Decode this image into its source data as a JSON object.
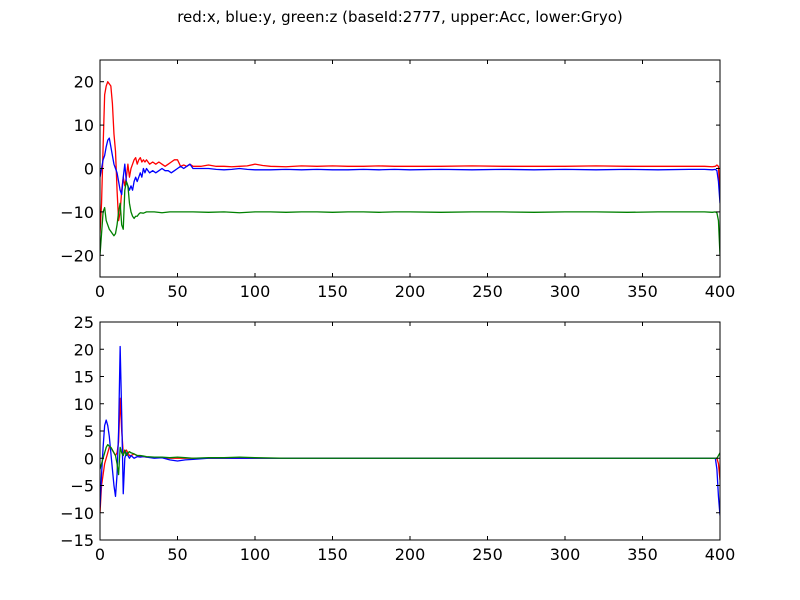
{
  "chart_data": {
    "title": "red:x, blue:y, green:z (baseId:2777, upper:Acc, lower:Gryo)",
    "panels": [
      {
        "type": "line",
        "xlim": [
          0,
          400
        ],
        "ylim": [
          -25,
          25
        ],
        "xticks": [
          0,
          50,
          100,
          150,
          200,
          250,
          300,
          350,
          400
        ],
        "yticks": [
          -20,
          -10,
          0,
          10,
          20
        ],
        "grid": false,
        "series": [
          {
            "color": "#ff0000",
            "x": [
              0,
              1,
              2,
              3,
              4,
              5,
              6,
              7,
              8,
              9,
              10,
              11,
              12,
              13,
              14,
              15,
              16,
              17,
              18,
              19,
              20,
              21,
              22,
              23,
              24,
              25,
              26,
              27,
              28,
              29,
              30,
              32,
              34,
              36,
              38,
              40,
              42,
              44,
              46,
              48,
              50,
              52,
              54,
              56,
              58,
              60,
              65,
              70,
              75,
              80,
              85,
              90,
              95,
              100,
              105,
              110,
              120,
              130,
              140,
              150,
              160,
              170,
              180,
              190,
              200,
              220,
              240,
              260,
              280,
              300,
              320,
              340,
              360,
              380,
              390,
              395,
              397,
              398,
              399,
              400
            ],
            "y": [
              -15,
              -8,
              5,
              17,
              19,
              20,
              19.5,
              19,
              15,
              8,
              4,
              -5,
              -12,
              -10,
              -5,
              -2,
              -4,
              -2,
              1,
              -2,
              0,
              1,
              2,
              2.5,
              1,
              2,
              2.5,
              1.5,
              2,
              1.5,
              2,
              1,
              1.5,
              1,
              1.5,
              1,
              0.5,
              1,
              1.5,
              2,
              2,
              0.5,
              0.8,
              0.5,
              1,
              0.5,
              0.5,
              0.8,
              0.5,
              0.5,
              0.4,
              0.5,
              0.6,
              1,
              0.7,
              0.5,
              0.4,
              0.6,
              0.5,
              0.6,
              0.5,
              0.5,
              0.6,
              0.5,
              0.5,
              0.5,
              0.6,
              0.5,
              0.5,
              0.5,
              0.6,
              0.5,
              0.5,
              0.5,
              0.5,
              0.4,
              0.5,
              0.8,
              0.5,
              -7
            ]
          },
          {
            "color": "#0000ff",
            "x": [
              0,
              1,
              2,
              3,
              4,
              5,
              6,
              7,
              8,
              9,
              10,
              11,
              12,
              13,
              14,
              15,
              16,
              17,
              18,
              19,
              20,
              21,
              22,
              23,
              24,
              25,
              26,
              27,
              28,
              29,
              30,
              32,
              34,
              36,
              38,
              40,
              42,
              44,
              46,
              48,
              50,
              52,
              54,
              56,
              58,
              60,
              65,
              70,
              75,
              80,
              85,
              90,
              95,
              100,
              110,
              120,
              130,
              140,
              150,
              160,
              170,
              180,
              190,
              200,
              220,
              240,
              260,
              280,
              300,
              320,
              340,
              360,
              380,
              390,
              395,
              397,
              398,
              399,
              400
            ],
            "y": [
              -2,
              0,
              2,
              3,
              5,
              6.5,
              7,
              5,
              3,
              1,
              0,
              -1,
              -3,
              -5,
              -6,
              -2,
              1,
              -3,
              -4,
              -5,
              -4,
              -5,
              -3,
              -2,
              -3,
              -2,
              -1,
              -2,
              0,
              -1,
              0,
              -1,
              -0.5,
              -1,
              -0.5,
              0,
              -0.5,
              -0.5,
              -1,
              -0.5,
              0,
              0.5,
              0,
              0.5,
              1,
              0,
              0,
              0,
              -0.2,
              -0.3,
              -0.2,
              0,
              -0.2,
              -0.3,
              -0.3,
              -0.2,
              -0.3,
              -0.2,
              -0.3,
              -0.3,
              -0.2,
              -0.3,
              -0.2,
              -0.3,
              -0.2,
              -0.3,
              -0.2,
              -0.3,
              -0.2,
              -0.3,
              -0.2,
              -0.3,
              -0.2,
              -0.2,
              -0.3,
              -0.2,
              -0.5,
              -3,
              -8
            ]
          },
          {
            "color": "#008000",
            "x": [
              0,
              1,
              2,
              3,
              4,
              5,
              6,
              7,
              8,
              9,
              10,
              11,
              12,
              13,
              14,
              15,
              16,
              17,
              18,
              19,
              20,
              21,
              22,
              23,
              24,
              25,
              26,
              28,
              30,
              35,
              40,
              45,
              50,
              60,
              70,
              80,
              90,
              100,
              110,
              120,
              130,
              140,
              150,
              160,
              170,
              180,
              190,
              200,
              220,
              240,
              260,
              280,
              300,
              320,
              340,
              360,
              380,
              390,
              395,
              397,
              398,
              399,
              400
            ],
            "y": [
              -20,
              -15,
              -10,
              -9,
              -12,
              -13,
              -14,
              -14.5,
              -15,
              -15.5,
              -15,
              -13,
              -10,
              -8,
              -13,
              -14,
              -5,
              -3,
              -4,
              -8,
              -10,
              -11,
              -11.5,
              -11,
              -11,
              -10.5,
              -10.2,
              -10.3,
              -10,
              -10,
              -10.2,
              -10,
              -10,
              -10,
              -10.1,
              -10,
              -10.2,
              -10,
              -10,
              -10.1,
              -10,
              -10,
              -10.1,
              -10,
              -10,
              -10.1,
              -10,
              -10,
              -10.1,
              -10,
              -10,
              -10.1,
              -10,
              -10,
              -10.1,
              -10,
              -10,
              -10,
              -10.1,
              -10,
              -10.2,
              -12,
              -20
            ]
          }
        ]
      },
      {
        "type": "line",
        "xlim": [
          0,
          400
        ],
        "ylim": [
          -15,
          25
        ],
        "xticks": [
          0,
          50,
          100,
          150,
          200,
          250,
          300,
          350,
          400
        ],
        "yticks": [
          -15,
          -10,
          -5,
          0,
          5,
          10,
          15,
          20,
          25
        ],
        "grid": false,
        "series": [
          {
            "color": "#ff0000",
            "x": [
              0,
              1,
              2,
              3,
              4,
              5,
              6,
              7,
              8,
              9,
              10,
              11,
              12,
              13,
              14,
              15,
              16,
              17,
              18,
              19,
              20,
              22,
              24,
              26,
              28,
              30,
              35,
              40,
              45,
              50,
              55,
              60,
              70,
              80,
              90,
              100,
              120,
              150,
              200,
              250,
              300,
              350,
              390,
              395,
              397,
              398,
              399,
              400
            ],
            "y": [
              -10,
              -5,
              -3,
              -1,
              0,
              1,
              2,
              2,
              1.5,
              1,
              0.5,
              1,
              3,
              11,
              5,
              1,
              1,
              1.5,
              1,
              0.5,
              0.5,
              0.8,
              0.5,
              0.3,
              0.3,
              0.2,
              0.2,
              0.1,
              0,
              0,
              0,
              0,
              0,
              0,
              0,
              0,
              0,
              0,
              0,
              0,
              0,
              0,
              0,
              0,
              0,
              0,
              -1,
              -4
            ]
          },
          {
            "color": "#0000ff",
            "x": [
              0,
              1,
              2,
              3,
              4,
              5,
              6,
              7,
              8,
              9,
              10,
              11,
              12,
              13,
              14,
              15,
              16,
              17,
              18,
              19,
              20,
              22,
              24,
              26,
              28,
              30,
              35,
              40,
              45,
              50,
              55,
              60,
              70,
              80,
              90,
              100,
              120,
              150,
              200,
              250,
              300,
              350,
              390,
              395,
              397,
              398,
              399,
              400
            ],
            "y": [
              -9,
              -3,
              2,
              6,
              7,
              6,
              4,
              1,
              -2,
              -5,
              -7,
              -3,
              5,
              20.5,
              8,
              -6.5,
              0,
              1,
              0.5,
              0,
              0.5,
              0,
              0.3,
              0.2,
              0.3,
              0.2,
              0,
              0.1,
              -0.3,
              -0.5,
              -0.3,
              -0.2,
              0,
              0,
              0,
              0,
              0,
              0,
              0,
              0,
              0,
              0,
              0,
              0,
              0,
              -2,
              -7,
              -10.5
            ]
          },
          {
            "color": "#008000",
            "x": [
              0,
              1,
              2,
              3,
              4,
              5,
              6,
              7,
              8,
              9,
              10,
              11,
              12,
              13,
              14,
              15,
              16,
              17,
              18,
              19,
              20,
              22,
              24,
              26,
              28,
              30,
              35,
              40,
              45,
              50,
              55,
              60,
              70,
              80,
              90,
              100,
              120,
              150,
              200,
              250,
              300,
              350,
              390,
              395,
              397,
              398,
              399,
              400
            ],
            "y": [
              -2,
              -1,
              0,
              1,
              2,
              2.5,
              2.2,
              2,
              1.5,
              1,
              0.5,
              -1,
              -3,
              2,
              1,
              0.5,
              1.5,
              0.5,
              1,
              1.2,
              1,
              0.8,
              0.5,
              0.5,
              0.4,
              0.3,
              0.2,
              0.2,
              0.1,
              0.2,
              0.1,
              0,
              0.1,
              0.1,
              0.2,
              0.1,
              0,
              0,
              0,
              0,
              0,
              0,
              0,
              0,
              0,
              0,
              0.5,
              1
            ]
          }
        ]
      }
    ]
  }
}
